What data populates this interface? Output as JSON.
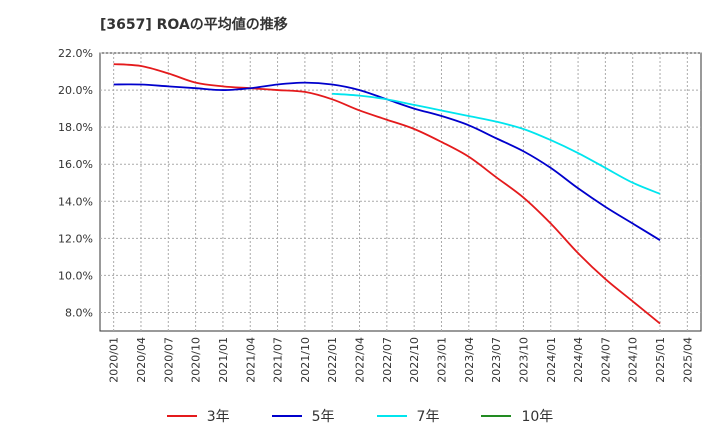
{
  "title": "[3657]  ROAの平均値の推移",
  "chart_data": {
    "type": "line",
    "title": "[3657]  ROAの平均値の推移",
    "xlabel": "",
    "ylabel": "",
    "ylim": [
      7.0,
      22.0
    ],
    "yticks": [
      "8.0%",
      "10.0%",
      "12.0%",
      "14.0%",
      "16.0%",
      "18.0%",
      "20.0%",
      "22.0%"
    ],
    "ytick_values": [
      8,
      10,
      12,
      14,
      16,
      18,
      20,
      22
    ],
    "xticks": [
      "2020/01",
      "2020/04",
      "2020/07",
      "2020/10",
      "2021/01",
      "2021/04",
      "2021/07",
      "2021/10",
      "2022/01",
      "2022/04",
      "2022/07",
      "2022/10",
      "2023/01",
      "2023/04",
      "2023/07",
      "2023/10",
      "2024/01",
      "2024/04",
      "2024/07",
      "2024/10",
      "2025/01",
      "2025/04"
    ],
    "grid": true,
    "legend_position": "bottom",
    "series": [
      {
        "name": "3年",
        "color": "#e41a1c",
        "x": [
          "2020/01",
          "2020/04",
          "2020/07",
          "2020/10",
          "2021/01",
          "2021/04",
          "2021/07",
          "2021/10",
          "2022/01",
          "2022/04",
          "2022/07",
          "2022/10",
          "2023/01",
          "2023/04",
          "2023/07",
          "2023/10",
          "2024/01",
          "2024/04",
          "2024/07",
          "2024/10",
          "2025/01"
        ],
        "values": [
          21.4,
          21.3,
          20.9,
          20.4,
          20.2,
          20.1,
          20.0,
          19.9,
          19.5,
          18.9,
          18.4,
          17.9,
          17.2,
          16.4,
          15.3,
          14.2,
          12.8,
          11.2,
          9.8,
          8.6,
          7.4
        ]
      },
      {
        "name": "5年",
        "color": "#0000cc",
        "x": [
          "2020/01",
          "2020/04",
          "2020/07",
          "2020/10",
          "2021/01",
          "2021/04",
          "2021/07",
          "2021/10",
          "2022/01",
          "2022/04",
          "2022/07",
          "2022/10",
          "2023/01",
          "2023/04",
          "2023/07",
          "2023/10",
          "2024/01",
          "2024/04",
          "2024/07",
          "2024/10",
          "2025/01"
        ],
        "values": [
          20.3,
          20.3,
          20.2,
          20.1,
          20.0,
          20.1,
          20.3,
          20.4,
          20.3,
          20.0,
          19.5,
          19.0,
          18.6,
          18.1,
          17.4,
          16.7,
          15.8,
          14.7,
          13.7,
          12.8,
          11.9
        ]
      },
      {
        "name": "7年",
        "color": "#00e5ee",
        "x": [
          "2022/01",
          "2022/04",
          "2022/07",
          "2022/10",
          "2023/01",
          "2023/04",
          "2023/07",
          "2023/10",
          "2024/01",
          "2024/04",
          "2024/07",
          "2024/10",
          "2025/01"
        ],
        "values": [
          19.8,
          19.7,
          19.5,
          19.2,
          18.9,
          18.6,
          18.3,
          17.9,
          17.3,
          16.6,
          15.8,
          15.0,
          14.4
        ]
      },
      {
        "name": "10年",
        "color": "#228b22",
        "x": [],
        "values": []
      }
    ]
  }
}
